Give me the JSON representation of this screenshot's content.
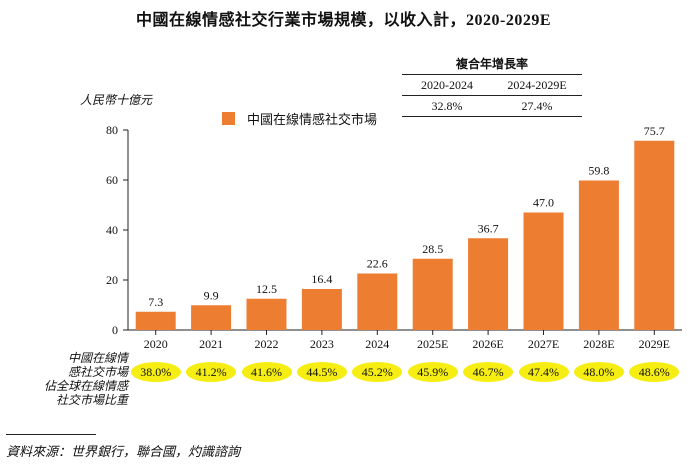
{
  "title": "中國在線情感社交行業市場規模，以收入計，2020-2029E",
  "unit_label": "人民幣十億元",
  "legend": "中國在線情感社交市場",
  "cagr_table": {
    "header": "複合年增長率",
    "periods": [
      "2020-2024",
      "2024-2029E"
    ],
    "values": [
      "32.8%",
      "27.4%"
    ]
  },
  "chart_data": {
    "type": "bar",
    "title": "中國在線情感社交行業市場規模，以收入計，2020-2029E",
    "ylabel": "人民幣十億元",
    "xlabel": "",
    "ylim": [
      0,
      80
    ],
    "yticks": [
      "0",
      "20",
      "40",
      "60",
      "80"
    ],
    "categories": [
      "2020",
      "2021",
      "2022",
      "2023",
      "2024",
      "2025E",
      "2026E",
      "2027E",
      "2028E",
      "2029E"
    ],
    "series": [
      {
        "name": "中國在線情感社交市場",
        "values": [
          7.3,
          9.9,
          12.5,
          16.4,
          22.6,
          28.5,
          36.7,
          47.0,
          59.8,
          75.7
        ],
        "labels": [
          "7.3",
          "9.9",
          "12.5",
          "16.4",
          "22.6",
          "28.5",
          "36.7",
          "47.0",
          "59.8",
          "75.7"
        ],
        "color": "#ED7D31"
      }
    ],
    "share_label": [
      "中國在線情",
      "感社交市場",
      "佔全球在線情感",
      "社交市場比重"
    ],
    "share_values": [
      "38.0%",
      "41.2%",
      "41.6%",
      "44.5%",
      "45.2%",
      "45.9%",
      "46.7%",
      "47.4%",
      "48.0%",
      "48.6%"
    ],
    "legend_position": "top-left"
  },
  "source": "資料來源：世界銀行，聯合國，灼識諮詢",
  "colors": {
    "bar": "#ED7D31",
    "highlight": "#F6EE12"
  }
}
